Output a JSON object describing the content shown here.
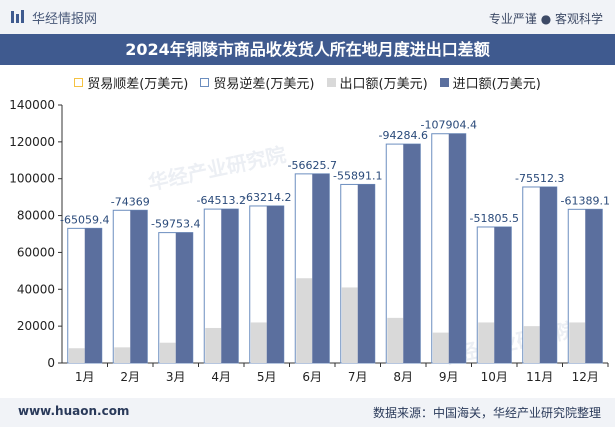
{
  "header": {
    "brand": "华经情报网",
    "slogan": "专业严谨 ● 客观科学"
  },
  "footer": {
    "website": "www.huaon.com",
    "source": "数据来源：中国海关，华经产业研究院整理"
  },
  "watermark": "华经产业研究院",
  "colors": {
    "export": "#d9d9d9",
    "import": "#5b6f9e",
    "surplus": "#f5c242",
    "deficit": "#6c8ebf",
    "title_bg": "#3f5a8f",
    "label": "#2a4a7a"
  },
  "chart_data": {
    "type": "bar",
    "title": "2024年铜陵市商品收发货人所在地月度进出口差额",
    "categories": [
      "1月",
      "2月",
      "3月",
      "4月",
      "5月",
      "6月",
      "7月",
      "8月",
      "9月",
      "10月",
      "11月",
      "12月"
    ],
    "series": [
      {
        "name": "贸易顺差(万美元)",
        "values": [
          0,
          0,
          0,
          0,
          0,
          0,
          0,
          0,
          0,
          0,
          0,
          0
        ]
      },
      {
        "name": "贸易逆差(万美元)",
        "values": [
          65059.4,
          74369,
          59753.4,
          64513.2,
          63214.2,
          56625.7,
          55891.1,
          94284.6,
          107904.4,
          51805.5,
          75512.3,
          61389.1
        ]
      },
      {
        "name": "出口额(万美元)",
        "values": [
          8000,
          8500,
          11000,
          19000,
          22000,
          46000,
          41000,
          24500,
          16500,
          22000,
          20000,
          22000
        ]
      },
      {
        "name": "进口额(万美元)",
        "values": [
          73059,
          82869,
          70753,
          83513,
          85214,
          102626,
          96891,
          118785,
          124404,
          73806,
          95512,
          83389
        ]
      }
    ],
    "data_labels": [
      "-65059.4",
      "-74369",
      "-59753.4",
      "-64513.2",
      "-63214.2",
      "-56625.7",
      "-55891.1",
      "-94284.6",
      "-107904.4",
      "-51805.5",
      "-75512.3",
      "-61389.1"
    ],
    "ylim": [
      0,
      140000
    ],
    "yticks": [
      0,
      20000,
      40000,
      60000,
      80000,
      100000,
      120000,
      140000
    ],
    "legend_position": "top",
    "grid": false
  }
}
